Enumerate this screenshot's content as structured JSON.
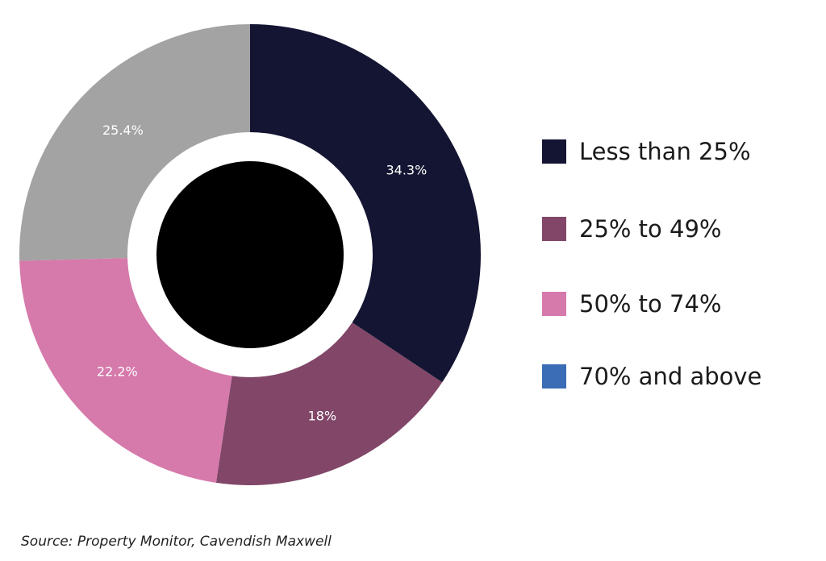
{
  "chart_data": {
    "type": "pie",
    "style": "donut",
    "center_fill": "#000000",
    "slices": [
      {
        "label": "Less than 25%",
        "value": 34.3,
        "value_label": "34.3%",
        "color": "#141533"
      },
      {
        "label": "25% to 49%",
        "value": 18,
        "value_label": "18%",
        "color": "#814668"
      },
      {
        "label": "50% to 74%",
        "value": 22.2,
        "value_label": "22.2%",
        "color": "#d679ab"
      },
      {
        "label": "70% and above",
        "value": 0,
        "value_label": "",
        "color": "#3a6db5"
      },
      {
        "label": "",
        "value": 25.4,
        "value_label": "25.4%",
        "color": "#a3a3a3"
      }
    ],
    "legend": [
      {
        "label": "Less than 25%",
        "color": "#141533"
      },
      {
        "label": "25% to 49%",
        "color": "#814668"
      },
      {
        "label": "50% to 74%",
        "color": "#d679ab"
      },
      {
        "label": "70% and above",
        "color": "#3a6db5"
      }
    ],
    "legend_position": "right"
  },
  "source": "Source: Property Monitor, Cavendish Maxwell"
}
